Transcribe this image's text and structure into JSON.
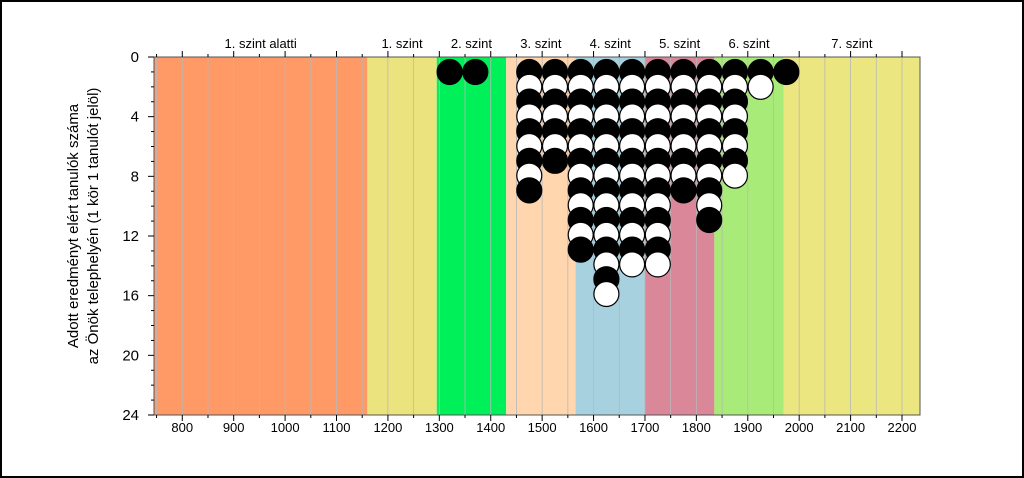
{
  "chart_data": {
    "type": "scatter",
    "title": "",
    "xlabel": "",
    "ylabel_lines": [
      "Adott eredményt elért tanulók száma",
      "az Önök telephelyén (1 kör 1 tanulót jelöl)"
    ],
    "xlim": [
      745,
      2235
    ],
    "ylim": [
      0,
      24
    ],
    "y_inverted": true,
    "x_ticks": [
      800,
      900,
      1000,
      1100,
      1200,
      1300,
      1400,
      1500,
      1600,
      1700,
      1800,
      1900,
      2000,
      2100,
      2200
    ],
    "y_ticks": [
      0,
      4,
      8,
      12,
      16,
      20,
      24
    ],
    "bands": [
      {
        "label": "1. szint alatti",
        "from": 745,
        "to": 1160,
        "color": "#ff9966"
      },
      {
        "label": "1. szint",
        "from": 1160,
        "to": 1295,
        "color": "#ebe37e"
      },
      {
        "label": "2. szint",
        "from": 1295,
        "to": 1430,
        "color": "#00f05a"
      },
      {
        "label": "3. szint",
        "from": 1430,
        "to": 1565,
        "color": "#ffd6ad"
      },
      {
        "label": "4. szint",
        "from": 1565,
        "to": 1700,
        "color": "#a8d1e0"
      },
      {
        "label": "5. szint",
        "from": 1700,
        "to": 1835,
        "color": "#d98799"
      },
      {
        "label": "6. szint",
        "from": 1835,
        "to": 1970,
        "color": "#a8eb78"
      },
      {
        "label": "7. szint",
        "from": 1970,
        "to": 2235,
        "color": "#ebe680"
      }
    ],
    "minor_grid_step": 50,
    "columns": [
      {
        "x": 1320,
        "dots": [
          "black"
        ]
      },
      {
        "x": 1370,
        "dots": [
          "black"
        ]
      },
      {
        "x": 1475,
        "dots": [
          "black",
          "white",
          "black",
          "white",
          "black",
          "white",
          "black",
          "white",
          "black"
        ]
      },
      {
        "x": 1525,
        "dots": [
          "black",
          "white",
          "black",
          "white",
          "black",
          "white",
          "black"
        ]
      },
      {
        "x": 1575,
        "dots": [
          "black",
          "white",
          "black",
          "white",
          "black",
          "white",
          "black",
          "white",
          "black",
          "white",
          "black",
          "white",
          "black"
        ]
      },
      {
        "x": 1625,
        "dots": [
          "black",
          "white",
          "black",
          "white",
          "black",
          "white",
          "black",
          "white",
          "black",
          "white",
          "black",
          "white",
          "black",
          "white",
          "black",
          "white"
        ]
      },
      {
        "x": 1675,
        "dots": [
          "black",
          "white",
          "black",
          "white",
          "black",
          "white",
          "black",
          "white",
          "black",
          "white",
          "black",
          "white",
          "black",
          "white"
        ]
      },
      {
        "x": 1725,
        "dots": [
          "black",
          "white",
          "black",
          "white",
          "black",
          "white",
          "black",
          "white",
          "black",
          "white",
          "black",
          "white",
          "black",
          "white"
        ]
      },
      {
        "x": 1775,
        "dots": [
          "black",
          "white",
          "black",
          "white",
          "black",
          "white",
          "black",
          "white",
          "black"
        ]
      },
      {
        "x": 1825,
        "dots": [
          "black",
          "white",
          "black",
          "white",
          "black",
          "white",
          "black",
          "white",
          "black",
          "white",
          "black"
        ]
      },
      {
        "x": 1875,
        "dots": [
          "black",
          "white",
          "black",
          "white",
          "black",
          "white",
          "black",
          "white"
        ]
      },
      {
        "x": 1925,
        "dots": [
          "black",
          "white"
        ]
      },
      {
        "x": 1975,
        "dots": [
          "black"
        ]
      }
    ]
  }
}
